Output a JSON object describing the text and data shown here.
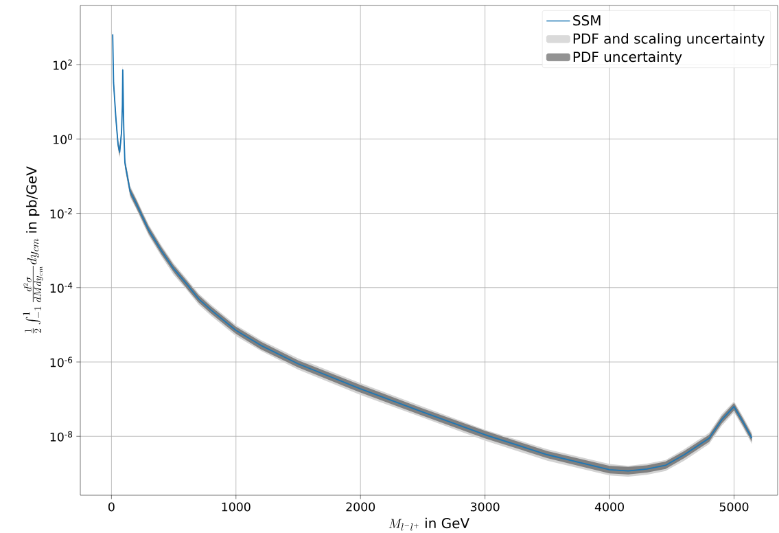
{
  "chart_data": {
    "type": "line",
    "xlabel": "M_{l^-l^+}\\text{ in GeV}",
    "ylabel": "\\frac{1}{2}\\int_{-1}^{1}\\frac{d^2\\sigma}{dMdy_{cm}}dy_{cm}\\text{ in pb/GeV}",
    "x": [
      10,
      17,
      35,
      53,
      66,
      81,
      88,
      91,
      99,
      108,
      150,
      200,
      250,
      300,
      400,
      500,
      600,
      700,
      800,
      1000,
      1200,
      1500,
      2000,
      2500,
      3000,
      3500,
      4000,
      4150,
      4300,
      4450,
      4600,
      4800,
      4900,
      5000,
      5070,
      5143
    ],
    "series": [
      {
        "name": "SSM",
        "color": "#1f77b4",
        "values": [
          650,
          33,
          3.9,
          0.71,
          0.44,
          1.5,
          8.1,
          72,
          1.9,
          0.23,
          0.039,
          0.018,
          0.0079,
          0.0035,
          0.001,
          0.00032,
          0.00013,
          5e-05,
          2.5e-05,
          7.1e-06,
          2.8e-06,
          8.9e-07,
          1.9e-07,
          4.5e-08,
          1.1e-08,
          3.2e-09,
          1.26e-09,
          1.17e-09,
          1.32e-09,
          1.66e-09,
          3.2e-09,
          8.9e-09,
          2.75e-08,
          6.3e-08,
          2.5e-08,
          8.9e-09
        ]
      },
      {
        "name": "PDF and scaling uncertainty",
        "type": "area",
        "color": "#d3d3d3",
        "values": [
          null,
          null,
          null,
          null,
          null,
          null,
          null,
          null,
          null,
          null,
          null,
          null,
          null,
          null,
          null,
          null,
          null,
          null,
          null,
          null,
          null,
          null,
          null,
          null,
          null,
          null,
          null,
          null,
          null,
          null,
          null,
          null,
          null,
          null,
          null,
          null
        ],
        "lower": [
          450,
          23,
          2.7,
          0.5,
          0.31,
          1.05,
          5.7,
          50,
          1.3,
          0.16,
          0.027,
          0.013,
          0.0055,
          0.0025,
          0.0007,
          0.00022,
          9.1e-05,
          3.5e-05,
          1.75e-05,
          5e-06,
          2e-06,
          6.2e-07,
          1.3e-07,
          3.2e-08,
          7.7e-09,
          2.2e-09,
          8.8e-10,
          8.2e-10,
          9.2e-10,
          1.16e-09,
          2.2e-09,
          6.2e-09,
          1.9e-08,
          4.4e-08,
          1.75e-08,
          6.2e-09
        ],
        "upper": [
          1000,
          46,
          5.5,
          1.0,
          0.62,
          2.1,
          11,
          100,
          2.7,
          0.32,
          0.055,
          0.025,
          0.011,
          0.0049,
          0.0014,
          0.00045,
          0.00018,
          7e-05,
          3.5e-05,
          9.9e-06,
          3.9e-06,
          1.25e-06,
          2.7e-07,
          6.3e-08,
          1.5e-08,
          4.5e-09,
          1.8e-09,
          1.6e-09,
          1.85e-09,
          2.3e-09,
          4.5e-09,
          1.25e-08,
          3.9e-08,
          8.8e-08,
          3.5e-08,
          1.25e-08
        ]
      },
      {
        "name": "PDF uncertainty",
        "type": "area",
        "color": "#808080",
        "values": [
          null,
          null,
          null,
          null,
          null,
          null,
          null,
          null,
          null,
          null,
          null,
          null,
          null,
          null,
          null,
          null,
          null,
          null,
          null,
          null,
          null,
          null,
          null,
          null,
          null,
          null,
          null,
          null,
          null,
          null,
          null,
          null,
          null,
          null,
          null,
          null
        ],
        "lower": [
          520,
          26,
          3.1,
          0.57,
          0.35,
          1.2,
          6.5,
          58,
          1.5,
          0.18,
          0.031,
          0.014,
          0.0063,
          0.0028,
          0.0008,
          0.00026,
          0.0001,
          4e-05,
          2e-05,
          5.7e-06,
          2.2e-06,
          7.1e-07,
          1.5e-07,
          3.6e-08,
          8.8e-09,
          2.6e-09,
          1e-09,
          9.4e-10,
          1.06e-09,
          1.33e-09,
          2.6e-09,
          7.1e-09,
          2.2e-08,
          5e-08,
          2e-08,
          7.1e-09
        ],
        "upper": [
          810,
          41,
          4.9,
          0.89,
          0.55,
          1.9,
          10,
          90,
          2.4,
          0.29,
          0.049,
          0.023,
          0.0099,
          0.0044,
          0.00125,
          0.0004,
          0.00016,
          6.3e-05,
          3.1e-05,
          8.9e-06,
          3.5e-06,
          1.1e-06,
          2.4e-07,
          5.6e-08,
          1.4e-08,
          4e-09,
          1.6e-09,
          1.5e-09,
          1.65e-09,
          2.1e-09,
          4e-09,
          1.1e-08,
          3.4e-08,
          7.9e-08,
          3.1e-08,
          1.1e-08
        ]
      }
    ],
    "xlim": [
      -250,
      5350
    ],
    "ylim": [
      2.6e-10,
      3900
    ],
    "xticks": [
      0,
      1000,
      2000,
      3000,
      4000,
      5000
    ],
    "yticks": [
      {
        "value": 1e-08,
        "label": "10$^{-8}$"
      },
      {
        "value": 1e-06,
        "label": "10$^{-6}$"
      },
      {
        "value": 0.0001,
        "label": "10$^{-4}$"
      },
      {
        "value": 0.01,
        "label": "10$^{-2}$"
      },
      {
        "value": 1,
        "label": "10$^{0}$"
      },
      {
        "value": 100,
        "label": "10$^{2}$"
      }
    ],
    "log": "y",
    "grid": true,
    "legend": "top right"
  }
}
